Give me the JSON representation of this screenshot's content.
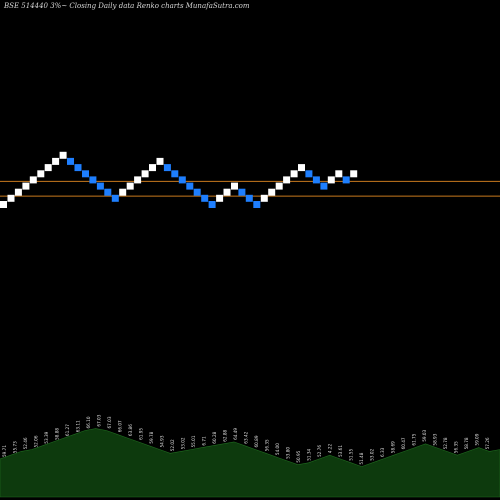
{
  "header": {
    "title": "BSE 514440  3%~  Closing Daily data  Renko  charts MunafaSutra.com"
  },
  "colors": {
    "background": "#000000",
    "up_brick": "#ffffff",
    "down_brick": "#1e7fff",
    "level_line": "#c8791e",
    "volume_area": "#0d3a0d"
  },
  "chart_data": {
    "type": "renko",
    "brick_move_percent": 3,
    "bricks": [
      {
        "dir": "up",
        "level": 0
      },
      {
        "dir": "up",
        "level": 1
      },
      {
        "dir": "up",
        "level": 2
      },
      {
        "dir": "up",
        "level": 3
      },
      {
        "dir": "up",
        "level": 4
      },
      {
        "dir": "up",
        "level": 5
      },
      {
        "dir": "up",
        "level": 6
      },
      {
        "dir": "up",
        "level": 7
      },
      {
        "dir": "up",
        "level": 8
      },
      {
        "dir": "down",
        "level": 7
      },
      {
        "dir": "down",
        "level": 6
      },
      {
        "dir": "down",
        "level": 5
      },
      {
        "dir": "down",
        "level": 4
      },
      {
        "dir": "down",
        "level": 3
      },
      {
        "dir": "down",
        "level": 2
      },
      {
        "dir": "down",
        "level": 1
      },
      {
        "dir": "up",
        "level": 2
      },
      {
        "dir": "up",
        "level": 3
      },
      {
        "dir": "up",
        "level": 4
      },
      {
        "dir": "up",
        "level": 5
      },
      {
        "dir": "up",
        "level": 6
      },
      {
        "dir": "up",
        "level": 7
      },
      {
        "dir": "down",
        "level": 6
      },
      {
        "dir": "down",
        "level": 5
      },
      {
        "dir": "down",
        "level": 4
      },
      {
        "dir": "down",
        "level": 3
      },
      {
        "dir": "down",
        "level": 2
      },
      {
        "dir": "down",
        "level": 1
      },
      {
        "dir": "down",
        "level": 0
      },
      {
        "dir": "up",
        "level": 1
      },
      {
        "dir": "up",
        "level": 2
      },
      {
        "dir": "up",
        "level": 3
      },
      {
        "dir": "down",
        "level": 2
      },
      {
        "dir": "down",
        "level": 1
      },
      {
        "dir": "down",
        "level": 0
      },
      {
        "dir": "up",
        "level": 1
      },
      {
        "dir": "up",
        "level": 2
      },
      {
        "dir": "up",
        "level": 3
      },
      {
        "dir": "up",
        "level": 4
      },
      {
        "dir": "up",
        "level": 5
      },
      {
        "dir": "up",
        "level": 6
      },
      {
        "dir": "down",
        "level": 5
      },
      {
        "dir": "down",
        "level": 4
      },
      {
        "dir": "down",
        "level": 3
      },
      {
        "dir": "up",
        "level": 4
      },
      {
        "dir": "up",
        "level": 5
      },
      {
        "dir": "down",
        "level": 4
      },
      {
        "dir": "up",
        "level": 5
      }
    ],
    "levels": [
      {
        "name": "upper",
        "level": 3.85
      },
      {
        "name": "lower",
        "level": 1.45
      }
    ],
    "volume_labels": [
      "59.71",
      "55.73",
      "52.46",
      "52.06",
      "53.39",
      "58.88",
      "61.27",
      "63.11",
      "66.10",
      "67.03",
      "67.03",
      "66.07",
      "63.86",
      "61.95",
      "59.78",
      "54.93",
      "52.02",
      "53.02",
      "55.01",
      "6.71",
      "60.28",
      "62.88",
      "64.49",
      "63.42",
      "60.89",
      "56.35",
      "54.00",
      "53.80",
      "50.95",
      "51.34",
      "52.76",
      "4.22",
      "53.61",
      "51.55",
      "51.48",
      "53.02",
      "6.33",
      "58.69",
      "60.47",
      "61.75",
      "59.03",
      "58.93",
      "52.78",
      "56.35",
      "58.78",
      "59.09",
      "57.26"
    ],
    "volume_values": [
      40,
      44,
      48,
      50,
      54,
      58,
      62,
      66,
      70,
      72,
      70,
      66,
      62,
      58,
      54,
      50,
      46,
      48,
      50,
      52,
      54,
      56,
      58,
      54,
      50,
      46,
      42,
      38,
      34,
      36,
      40,
      44,
      40,
      36,
      32,
      36,
      40,
      44,
      48,
      52,
      56,
      52,
      48,
      44,
      48,
      52,
      48,
      50
    ],
    "title": ""
  }
}
